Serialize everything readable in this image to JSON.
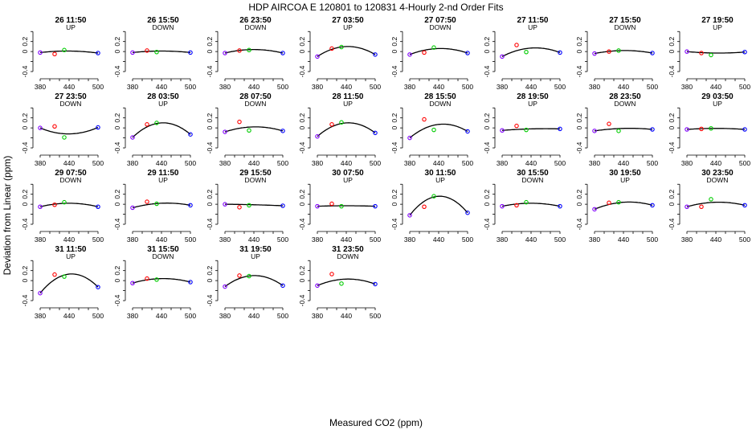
{
  "title": "HDP   AIRCOA E   120801 to 120831   4-Hourly 2-nd Order Fits",
  "xlabel": "Measured CO2 (ppm)",
  "ylabel": "Deviation from Linear (ppm)",
  "colors": {
    "ref1": "#8000ff",
    "ref2": "#ff0000",
    "ref3": "#00cc00",
    "ref4": "#0000ff",
    "fit": "#000000"
  },
  "chart_data": {
    "type": "scatter",
    "xlim": [
      375,
      505
    ],
    "ylim": [
      -0.48,
      0.42
    ],
    "x_ticks": [
      380,
      440,
      500
    ],
    "y_ticks": [
      -0.4,
      0,
      0.2
    ],
    "y_tick_labels": [
      "-0.4",
      "0",
      "0.2"
    ],
    "reference_x": [
      380,
      410,
      430,
      500
    ],
    "grid": false,
    "panels": [
      {
        "label": "26 11:50",
        "dir": "UP",
        "points": [
          -0.02,
          -0.05,
          0.03,
          -0.03
        ],
        "fit_peak": 0.01
      },
      {
        "label": "26 15:50",
        "dir": "DOWN",
        "points": [
          -0.02,
          0.02,
          -0.01,
          -0.02
        ],
        "fit_peak": 0.01
      },
      {
        "label": "26 23:50",
        "dir": "DOWN",
        "points": [
          -0.03,
          0.02,
          0.03,
          -0.03
        ],
        "fit_peak": 0.04
      },
      {
        "label": "27 03:50",
        "dir": "UP",
        "points": [
          -0.1,
          0.06,
          0.09,
          -0.06
        ],
        "fit_peak": 0.1
      },
      {
        "label": "27 07:50",
        "dir": "DOWN",
        "points": [
          -0.06,
          -0.02,
          0.08,
          -0.03
        ],
        "fit_peak": 0.06
      },
      {
        "label": "27 11:50",
        "dir": "UP",
        "points": [
          -0.1,
          0.13,
          -0.01,
          -0.02
        ],
        "fit_peak": 0.07
      },
      {
        "label": "27 15:50",
        "dir": "DOWN",
        "points": [
          -0.04,
          0.0,
          0.02,
          -0.03
        ],
        "fit_peak": 0.02
      },
      {
        "label": "27 19:50",
        "dir": "UP",
        "points": [
          0.0,
          -0.03,
          -0.07,
          -0.01
        ],
        "fit_peak": -0.03
      },
      {
        "label": "27 23:50",
        "dir": "DOWN",
        "points": [
          0.0,
          0.03,
          -0.19,
          0.01
        ],
        "fit_peak": -0.12
      },
      {
        "label": "28 03:50",
        "dir": "UP",
        "points": [
          -0.19,
          0.07,
          0.1,
          -0.13
        ],
        "fit_peak": 0.1
      },
      {
        "label": "28 07:50",
        "dir": "DOWN",
        "points": [
          -0.08,
          0.12,
          -0.05,
          -0.06
        ],
        "fit_peak": 0.02
      },
      {
        "label": "28 11:50",
        "dir": "UP",
        "points": [
          -0.17,
          0.07,
          0.11,
          -0.1
        ],
        "fit_peak": 0.1
      },
      {
        "label": "28 15:50",
        "dir": "DOWN",
        "points": [
          -0.2,
          0.17,
          -0.04,
          -0.07
        ],
        "fit_peak": 0.07
      },
      {
        "label": "28 19:50",
        "dir": "UP",
        "points": [
          -0.05,
          0.04,
          -0.04,
          -0.02
        ],
        "fit_peak": -0.02
      },
      {
        "label": "28 23:50",
        "dir": "DOWN",
        "points": [
          -0.06,
          0.08,
          -0.06,
          -0.03
        ],
        "fit_peak": -0.01
      },
      {
        "label": "29 03:50",
        "dir": "UP",
        "points": [
          -0.03,
          -0.02,
          -0.01,
          -0.03
        ],
        "fit_peak": -0.01
      },
      {
        "label": "29 07:50",
        "dir": "DOWN",
        "points": [
          -0.05,
          -0.01,
          0.04,
          -0.05
        ],
        "fit_peak": 0.02
      },
      {
        "label": "29 11:50",
        "dir": "UP",
        "points": [
          -0.07,
          0.05,
          0.01,
          -0.02
        ],
        "fit_peak": 0.02
      },
      {
        "label": "29 15:50",
        "dir": "DOWN",
        "points": [
          0.0,
          -0.06,
          -0.02,
          -0.03
        ],
        "fit_peak": -0.01
      },
      {
        "label": "30 07:50",
        "dir": "UP",
        "points": [
          -0.04,
          0.01,
          -0.04,
          -0.04
        ],
        "fit_peak": -0.03
      },
      {
        "label": "30 11:50",
        "dir": "UP",
        "points": [
          -0.22,
          -0.05,
          0.16,
          -0.17
        ],
        "fit_peak": 0.16
      },
      {
        "label": "30 15:50",
        "dir": "DOWN",
        "points": [
          -0.04,
          -0.02,
          0.04,
          -0.04
        ],
        "fit_peak": 0.02
      },
      {
        "label": "30 19:50",
        "dir": "UP",
        "points": [
          -0.1,
          0.03,
          0.04,
          -0.02
        ],
        "fit_peak": 0.04
      },
      {
        "label": "30 23:50",
        "dir": "DOWN",
        "points": [
          -0.05,
          -0.05,
          0.1,
          -0.02
        ],
        "fit_peak": 0.04
      },
      {
        "label": "31 11:50",
        "dir": "UP",
        "points": [
          -0.25,
          0.12,
          0.08,
          -0.13
        ],
        "fit_peak": 0.13
      },
      {
        "label": "31 15:50",
        "dir": "DOWN",
        "points": [
          -0.05,
          0.04,
          0.02,
          -0.03
        ],
        "fit_peak": 0.04
      },
      {
        "label": "31 19:50",
        "dir": "UP",
        "points": [
          -0.12,
          0.1,
          0.09,
          -0.1
        ],
        "fit_peak": 0.1
      },
      {
        "label": "31 23:50",
        "dir": "DOWN",
        "points": [
          -0.1,
          0.13,
          -0.06,
          -0.07
        ],
        "fit_peak": 0.03
      }
    ]
  }
}
